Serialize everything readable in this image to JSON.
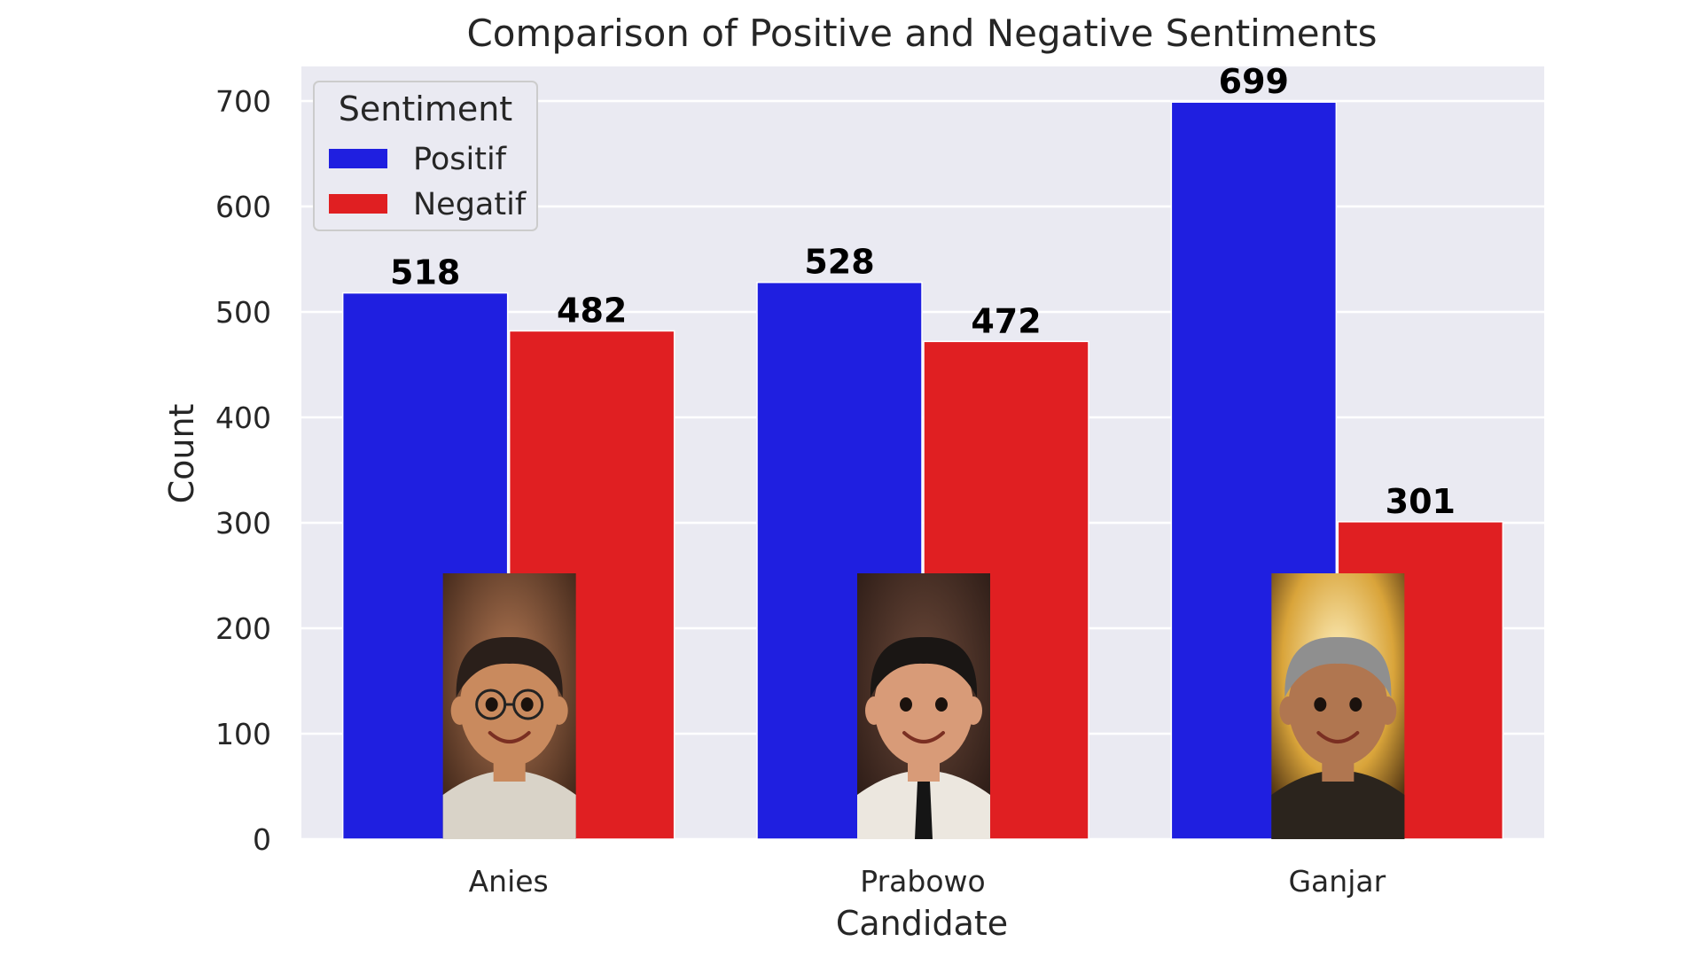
{
  "chart_data": {
    "type": "bar",
    "title": "Comparison of Positive and Negative Sentiments",
    "xlabel": "Candidate",
    "ylabel": "Count",
    "categories": [
      "Anies",
      "Prabowo",
      "Ganjar"
    ],
    "series": [
      {
        "name": "Positif",
        "values": [
          518,
          528,
          699
        ],
        "color": "#1f1fe0"
      },
      {
        "name": "Negatif",
        "values": [
          482,
          472,
          301
        ],
        "color": "#e01f22"
      }
    ],
    "ylim": [
      0,
      730
    ],
    "yticks": [
      0,
      100,
      200,
      300,
      400,
      500,
      600,
      700
    ],
    "grid": true,
    "legend": {
      "title": "Sentiment",
      "placement": "top-left"
    },
    "background_color": "#eaeaf2",
    "portraits": [
      "portrait-icon",
      "portrait-icon",
      "portrait-icon"
    ]
  }
}
